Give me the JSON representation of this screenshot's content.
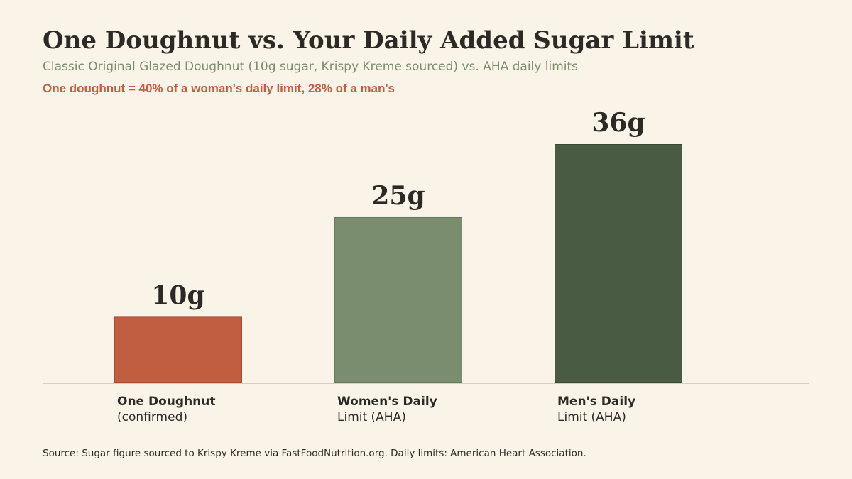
{
  "chart_data": {
    "type": "bar",
    "title": "One Doughnut vs. Your Daily Added Sugar Limit",
    "subtitle": "Classic Original Glazed Doughnut (10g sugar, Krispy Kreme sourced) vs. AHA daily limits",
    "annotation": "One doughnut = 40% of a woman's daily limit, 28% of a man's",
    "categories": [
      {
        "line1": "One Doughnut",
        "line2": "(confirmed)"
      },
      {
        "line1": "Women's Daily",
        "line2": "Limit (AHA)"
      },
      {
        "line1": "Men's Daily",
        "line2": "Limit (AHA)"
      }
    ],
    "values": [
      10,
      25,
      36
    ],
    "value_labels": [
      "10g",
      "25g",
      "36g"
    ],
    "unit": "g",
    "colors": [
      "#c25e40",
      "#7a8d6f",
      "#4a5b43"
    ],
    "bar_edge_colors": [
      "#a84c33",
      "#667a5c",
      "#3a4934"
    ],
    "ylim": [
      0,
      36
    ],
    "grid": false,
    "legend": "none",
    "xlabel": "",
    "ylabel": ""
  },
  "source": "Source: Sugar figure sourced to Krispy Kreme via FastFoodNutrition.org. Daily limits: American Heart Association."
}
